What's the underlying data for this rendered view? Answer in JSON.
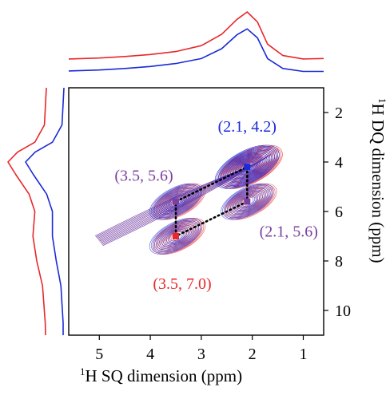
{
  "colors": {
    "red": "#e8272b",
    "blue": "#1a2ad6",
    "purple": "#7a3fa0",
    "frame": "#000000"
  },
  "chart_data": {
    "type": "2D contour (NMR DQ-SQ correlation) with projections",
    "xlabel_sup": "1",
    "xlabel_rest": "H SQ dimension (ppm)",
    "ylabel_sup": "1",
    "ylabel_rest": "H DQ dimension (ppm)",
    "xlim": [
      5.6,
      0.6
    ],
    "ylim": [
      1.0,
      11.0
    ],
    "x_ticks": [
      5,
      4,
      3,
      2,
      1
    ],
    "y_ticks": [
      2,
      4,
      6,
      8,
      10
    ],
    "series": [
      {
        "color": "red",
        "peaks": [
          {
            "sq": 2.1,
            "dq": 4.2,
            "amp": 1.0
          },
          {
            "sq": 3.5,
            "dq": 7.0,
            "amp": 0.6
          },
          {
            "sq": 2.1,
            "dq": 5.6,
            "amp": 0.55
          },
          {
            "sq": 3.5,
            "dq": 5.6,
            "amp": 0.55
          }
        ],
        "top_projection": [
          [
            5.6,
            0.05
          ],
          [
            5.0,
            0.07
          ],
          [
            4.5,
            0.1
          ],
          [
            4.0,
            0.14
          ],
          [
            3.5,
            0.2
          ],
          [
            3.0,
            0.32
          ],
          [
            2.6,
            0.55
          ],
          [
            2.3,
            0.85
          ],
          [
            2.1,
            1.0
          ],
          [
            1.9,
            0.8
          ],
          [
            1.7,
            0.35
          ],
          [
            1.4,
            0.12
          ],
          [
            1.0,
            0.05
          ],
          [
            0.6,
            0.06
          ]
        ],
        "left_projection": [
          [
            1.0,
            0.0
          ],
          [
            2.5,
            0.05
          ],
          [
            3.2,
            0.3
          ],
          [
            3.6,
            0.75
          ],
          [
            4.0,
            1.0
          ],
          [
            4.5,
            0.8
          ],
          [
            5.3,
            0.45
          ],
          [
            6.0,
            0.3
          ],
          [
            7.0,
            0.35
          ],
          [
            8.0,
            0.25
          ],
          [
            9.0,
            0.1
          ],
          [
            10.5,
            0.03
          ],
          [
            11.0,
            0.02
          ]
        ]
      },
      {
        "color": "blue",
        "peaks": [
          {
            "sq": 2.1,
            "dq": 4.2,
            "amp": 1.0
          },
          {
            "sq": 3.5,
            "dq": 7.0,
            "amp": 0.5
          },
          {
            "sq": 2.1,
            "dq": 5.6,
            "amp": 0.55
          },
          {
            "sq": 3.5,
            "dq": 5.6,
            "amp": 0.55
          }
        ],
        "top_projection": [
          [
            5.6,
            0.05
          ],
          [
            5.0,
            0.07
          ],
          [
            4.5,
            0.1
          ],
          [
            4.0,
            0.14
          ],
          [
            3.5,
            0.2
          ],
          [
            3.0,
            0.3
          ],
          [
            2.6,
            0.5
          ],
          [
            2.3,
            0.78
          ],
          [
            2.1,
            0.9
          ],
          [
            1.9,
            0.72
          ],
          [
            1.7,
            0.3
          ],
          [
            1.4,
            0.1
          ],
          [
            1.0,
            0.04
          ],
          [
            0.6,
            0.04
          ]
        ],
        "left_projection": [
          [
            1.0,
            0.0
          ],
          [
            2.5,
            0.05
          ],
          [
            3.2,
            0.3
          ],
          [
            3.6,
            0.75
          ],
          [
            4.0,
            1.0
          ],
          [
            4.5,
            0.8
          ],
          [
            5.3,
            0.45
          ],
          [
            6.0,
            0.3
          ],
          [
            7.0,
            0.3
          ],
          [
            8.0,
            0.2
          ],
          [
            9.0,
            0.08
          ],
          [
            10.5,
            0.02
          ],
          [
            11.0,
            0.02
          ]
        ]
      }
    ],
    "connector_points": [
      {
        "sq": 2.1,
        "dq": 4.2
      },
      {
        "sq": 2.1,
        "dq": 5.6
      },
      {
        "sq": 3.5,
        "dq": 7.0
      },
      {
        "sq": 3.5,
        "dq": 5.6
      }
    ],
    "annotations": [
      {
        "text": "(2.1, 4.2)",
        "color": "blue",
        "sq": 2.1,
        "dq": 4.2,
        "place": "above"
      },
      {
        "text": "(3.5, 5.6)",
        "color": "purple",
        "sq": 3.5,
        "dq": 5.6,
        "place": "upper-left"
      },
      {
        "text": "(2.1, 5.6)",
        "color": "purple",
        "sq": 2.1,
        "dq": 5.6,
        "place": "lower-right"
      },
      {
        "text": "(3.5, 7.0)",
        "color": "red",
        "sq": 3.5,
        "dq": 7.0,
        "place": "below"
      }
    ]
  }
}
